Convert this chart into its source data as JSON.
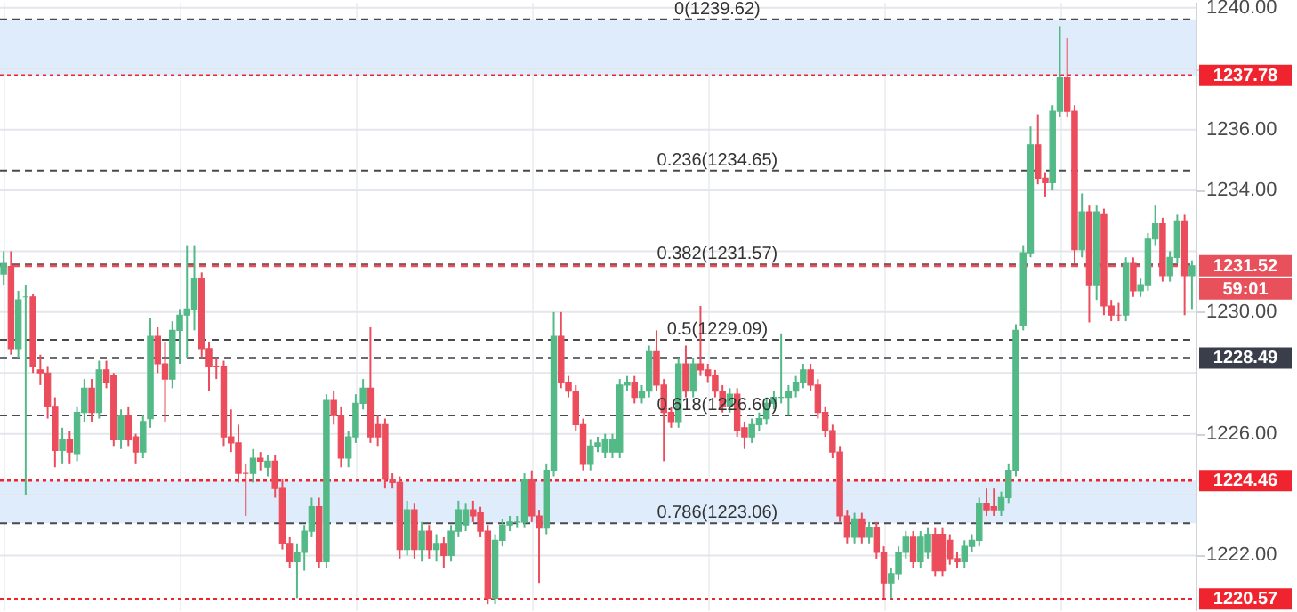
{
  "chart_data": {
    "type": "candlestick",
    "categories": [
      null,
      null,
      null,
      null,
      null,
      null,
      null,
      null,
      null,
      null,
      null,
      null,
      null,
      null,
      null,
      null,
      null,
      null,
      null,
      null,
      null,
      null,
      null,
      null,
      null,
      null,
      null,
      null,
      null,
      null,
      null,
      null,
      null,
      null,
      null,
      null,
      null,
      null,
      null,
      null,
      null,
      null,
      null,
      null,
      null,
      null,
      null,
      null,
      null,
      null,
      null,
      null,
      null,
      null,
      null,
      null,
      null,
      null,
      null,
      null,
      null,
      null,
      null,
      null,
      null,
      null,
      null,
      null,
      null,
      null,
      null,
      null,
      null,
      null,
      null,
      null,
      null,
      null,
      null,
      null,
      null,
      null,
      null,
      null,
      null,
      null,
      null,
      null,
      null,
      null,
      null,
      null,
      null,
      null,
      null,
      null,
      null,
      null,
      null,
      null,
      null,
      null,
      null,
      null,
      null,
      null,
      null,
      null,
      null,
      null,
      null,
      null,
      null,
      null,
      null,
      null,
      null,
      null,
      null,
      null,
      null,
      null,
      null,
      null,
      null,
      null,
      null,
      null,
      null,
      null,
      null,
      null,
      null,
      null,
      null,
      null,
      null,
      null,
      null,
      null,
      null,
      null,
      null,
      null,
      null,
      null,
      null,
      null,
      null,
      null,
      null,
      null,
      null,
      null,
      null,
      null,
      null,
      null,
      null,
      null,
      null,
      null,
      null
    ],
    "ohlc": [
      [
        1231.25,
        1232.0,
        1230.9,
        1231.6
      ],
      [
        1231.5,
        1232.0,
        1228.6,
        1228.8
      ],
      [
        1228.8,
        1230.7,
        1228.5,
        1230.4
      ],
      [
        1230.5,
        1230.9,
        1224.0,
        1230.5
      ],
      [
        1230.5,
        1230.6,
        1228.0,
        1228.2
      ],
      [
        1228.1,
        1228.6,
        1227.6,
        1228.0
      ],
      [
        1228.0,
        1228.2,
        1226.5,
        1226.9
      ],
      [
        1226.9,
        1227.2,
        1224.9,
        1225.45
      ],
      [
        1225.45,
        1226.2,
        1225.0,
        1225.8
      ],
      [
        1225.8,
        1226.1,
        1225.0,
        1225.4
      ],
      [
        1225.35,
        1226.9,
        1225.1,
        1226.7
      ],
      [
        1226.7,
        1227.8,
        1226.4,
        1227.5
      ],
      [
        1227.5,
        1227.8,
        1226.4,
        1226.7
      ],
      [
        1226.7,
        1228.4,
        1226.5,
        1228.1
      ],
      [
        1228.1,
        1228.4,
        1227.5,
        1227.7
      ],
      [
        1227.9,
        1228.0,
        1225.6,
        1225.8
      ],
      [
        1225.8,
        1226.8,
        1225.5,
        1226.6
      ],
      [
        1226.6,
        1226.9,
        1225.6,
        1225.8
      ],
      [
        1225.9,
        1226.0,
        1225.0,
        1225.4
      ],
      [
        1225.4,
        1226.6,
        1225.2,
        1226.4
      ],
      [
        1226.5,
        1229.8,
        1226.2,
        1229.2
      ],
      [
        1229.2,
        1229.5,
        1228.0,
        1228.3
      ],
      [
        1228.3,
        1229.0,
        1226.4,
        1227.8
      ],
      [
        1227.8,
        1229.7,
        1227.5,
        1229.4
      ],
      [
        1229.4,
        1230.1,
        1228.3,
        1229.9
      ],
      [
        1229.9,
        1232.2,
        1228.5,
        1230.1
      ],
      [
        1230.1,
        1232.2,
        1229.4,
        1231.1
      ],
      [
        1231.1,
        1231.3,
        1228.5,
        1228.8
      ],
      [
        1228.8,
        1229.0,
        1227.4,
        1228.2
      ],
      [
        1228.2,
        1228.5,
        1227.8,
        1228.2
      ],
      [
        1228.2,
        1228.4,
        1225.6,
        1225.9
      ],
      [
        1225.9,
        1226.8,
        1225.4,
        1225.7
      ],
      [
        1225.7,
        1226.3,
        1224.4,
        1224.7
      ],
      [
        1224.7,
        1225.0,
        1223.3,
        1224.7
      ],
      [
        1224.7,
        1225.5,
        1224.4,
        1225.2
      ],
      [
        1225.2,
        1225.4,
        1224.8,
        1225.1
      ],
      [
        1224.9,
        1225.3,
        1224.6,
        1225.1
      ],
      [
        1225.1,
        1225.3,
        1223.9,
        1224.2
      ],
      [
        1224.2,
        1224.5,
        1222.2,
        1222.4
      ],
      [
        1222.4,
        1222.6,
        1221.6,
        1221.8
      ],
      [
        1221.8,
        1222.4,
        1220.6,
        1222.1
      ],
      [
        1222.1,
        1223.0,
        1221.5,
        1222.8
      ],
      [
        1222.8,
        1223.9,
        1222.6,
        1223.6
      ],
      [
        1223.6,
        1223.9,
        1221.6,
        1221.8
      ],
      [
        1221.8,
        1227.3,
        1221.6,
        1227.1
      ],
      [
        1227.1,
        1227.4,
        1226.3,
        1226.6
      ],
      [
        1226.6,
        1226.9,
        1224.9,
        1225.2
      ],
      [
        1225.2,
        1226.1,
        1224.9,
        1225.9
      ],
      [
        1225.9,
        1227.3,
        1225.7,
        1227.0
      ],
      [
        1227.0,
        1227.8,
        1226.8,
        1227.5
      ],
      [
        1227.5,
        1229.5,
        1225.7,
        1225.9
      ],
      [
        1226.3,
        1226.6,
        1225.6,
        1225.9
      ],
      [
        1226.3,
        1226.5,
        1224.2,
        1224.5
      ],
      [
        1224.5,
        1224.7,
        1224.2,
        1224.4
      ],
      [
        1224.4,
        1224.6,
        1221.9,
        1222.2
      ],
      [
        1222.2,
        1223.8,
        1222.0,
        1223.5
      ],
      [
        1223.5,
        1223.7,
        1221.9,
        1222.2
      ],
      [
        1222.2,
        1223.1,
        1221.8,
        1222.8
      ],
      [
        1222.8,
        1223.0,
        1221.9,
        1222.2
      ],
      [
        1222.2,
        1222.7,
        1221.8,
        1222.4
      ],
      [
        1222.4,
        1222.6,
        1221.6,
        1222.0
      ],
      [
        1222.0,
        1223.0,
        1221.8,
        1222.8
      ],
      [
        1222.8,
        1223.8,
        1222.6,
        1223.5
      ],
      [
        1223.0,
        1223.7,
        1222.8,
        1223.5
      ],
      [
        1223.5,
        1223.8,
        1223.1,
        1223.3
      ],
      [
        1223.4,
        1223.6,
        1222.6,
        1222.8
      ],
      [
        1222.8,
        1223.0,
        1220.4,
        1220.6
      ],
      [
        1220.6,
        1222.7,
        1220.4,
        1222.5
      ],
      [
        1222.5,
        1223.2,
        1222.3,
        1223.0
      ],
      [
        1223.0,
        1223.3,
        1222.8,
        1223.1
      ],
      [
        1223.1,
        1223.3,
        1222.9,
        1223.1
      ],
      [
        1223.1,
        1224.7,
        1222.9,
        1224.5
      ],
      [
        1224.5,
        1224.8,
        1223.1,
        1223.3
      ],
      [
        1223.3,
        1223.5,
        1221.1,
        1222.9
      ],
      [
        1222.9,
        1225.0,
        1222.7,
        1224.8
      ],
      [
        1224.8,
        1230.0,
        1224.6,
        1229.2
      ],
      [
        1229.2,
        1230.0,
        1227.5,
        1227.7
      ],
      [
        1227.7,
        1227.9,
        1227.2,
        1227.4
      ],
      [
        1227.4,
        1227.6,
        1226.1,
        1226.3
      ],
      [
        1226.3,
        1226.5,
        1224.8,
        1225.0
      ],
      [
        1225.0,
        1225.8,
        1224.8,
        1225.6
      ],
      [
        1225.6,
        1225.9,
        1225.4,
        1225.7
      ],
      [
        1225.4,
        1226.0,
        1225.2,
        1225.8
      ],
      [
        1225.4,
        1226.0,
        1225.2,
        1225.8
      ],
      [
        1225.4,
        1227.8,
        1225.2,
        1227.6
      ],
      [
        1227.6,
        1227.9,
        1227.4,
        1227.7
      ],
      [
        1227.7,
        1227.9,
        1227.0,
        1227.2
      ],
      [
        1227.2,
        1227.6,
        1227.0,
        1227.4
      ],
      [
        1227.4,
        1228.9,
        1227.2,
        1228.7
      ],
      [
        1228.7,
        1229.4,
        1227.4,
        1227.6
      ],
      [
        1227.6,
        1227.8,
        1225.1,
        1226.7
      ],
      [
        1226.7,
        1226.9,
        1226.2,
        1226.4
      ],
      [
        1226.4,
        1228.5,
        1226.2,
        1228.3
      ],
      [
        1228.3,
        1228.9,
        1227.2,
        1227.4
      ],
      [
        1227.4,
        1228.5,
        1227.2,
        1228.3
      ],
      [
        1228.3,
        1230.2,
        1227.9,
        1228.1
      ],
      [
        1228.1,
        1228.3,
        1227.7,
        1227.9
      ],
      [
        1227.9,
        1228.1,
        1227.2,
        1227.4
      ],
      [
        1227.4,
        1227.6,
        1226.7,
        1226.9
      ],
      [
        1226.9,
        1227.5,
        1226.7,
        1227.3
      ],
      [
        1227.3,
        1227.5,
        1225.9,
        1226.1
      ],
      [
        1226.2,
        1226.4,
        1225.5,
        1225.9
      ],
      [
        1225.9,
        1226.5,
        1225.7,
        1226.3
      ],
      [
        1226.3,
        1226.7,
        1226.1,
        1226.5
      ],
      [
        1226.5,
        1227.2,
        1226.3,
        1227.0
      ],
      [
        1227.0,
        1227.4,
        1226.8,
        1227.2
      ],
      [
        1227.2,
        1229.3,
        1227.0,
        1227.2
      ],
      [
        1227.2,
        1227.6,
        1226.6,
        1227.4
      ],
      [
        1227.4,
        1227.9,
        1227.2,
        1227.7
      ],
      [
        1227.7,
        1228.3,
        1227.5,
        1228.1
      ],
      [
        1228.1,
        1228.3,
        1227.4,
        1227.6
      ],
      [
        1227.6,
        1227.8,
        1226.5,
        1226.7
      ],
      [
        1226.7,
        1226.9,
        1225.9,
        1226.1
      ],
      [
        1226.1,
        1226.3,
        1225.2,
        1225.4
      ],
      [
        1225.4,
        1225.6,
        1223.1,
        1223.3
      ],
      [
        1223.3,
        1223.5,
        1222.4,
        1222.6
      ],
      [
        1222.6,
        1223.4,
        1222.4,
        1223.2
      ],
      [
        1223.2,
        1223.4,
        1222.4,
        1222.6
      ],
      [
        1222.6,
        1223.1,
        1222.4,
        1222.9
      ],
      [
        1222.9,
        1223.1,
        1221.9,
        1222.1
      ],
      [
        1222.1,
        1222.3,
        1220.6,
        1221.1
      ],
      [
        1221.1,
        1221.6,
        1220.6,
        1221.4
      ],
      [
        1221.4,
        1222.3,
        1221.2,
        1222.1
      ],
      [
        1222.1,
        1222.8,
        1221.9,
        1222.6
      ],
      [
        1222.6,
        1222.8,
        1221.6,
        1221.8
      ],
      [
        1221.8,
        1222.8,
        1221.6,
        1222.6
      ],
      [
        1222.1,
        1222.9,
        1221.9,
        1222.7
      ],
      [
        1222.7,
        1222.9,
        1221.3,
        1221.5
      ],
      [
        1222.7,
        1222.9,
        1221.3,
        1221.5
      ],
      [
        1222.5,
        1222.7,
        1221.7,
        1221.9
      ],
      [
        1221.9,
        1222.1,
        1221.6,
        1221.8
      ],
      [
        1221.8,
        1222.5,
        1221.6,
        1222.3
      ],
      [
        1222.3,
        1222.7,
        1222.1,
        1222.5
      ],
      [
        1222.5,
        1223.9,
        1222.3,
        1223.7
      ],
      [
        1223.7,
        1224.2,
        1223.3,
        1223.5
      ],
      [
        1223.6,
        1224.2,
        1223.3,
        1223.5
      ],
      [
        1223.5,
        1224.1,
        1223.3,
        1223.9
      ],
      [
        1223.9,
        1225.0,
        1223.7,
        1224.8
      ],
      [
        1224.8,
        1229.6,
        1224.6,
        1229.4
      ],
      [
        1229.56,
        1232.2,
        1229.4,
        1231.95
      ],
      [
        1231.95,
        1236.1,
        1231.8,
        1235.5
      ],
      [
        1235.5,
        1236.5,
        1234.2,
        1234.4
      ],
      [
        1234.4,
        1234.6,
        1233.8,
        1234.25
      ],
      [
        1234.25,
        1236.8,
        1234.0,
        1236.6
      ],
      [
        1236.6,
        1239.4,
        1236.4,
        1237.7
      ],
      [
        1237.7,
        1239.0,
        1236.4,
        1236.6
      ],
      [
        1236.6,
        1236.8,
        1231.6,
        1232.05
      ],
      [
        1232.05,
        1233.9,
        1231.8,
        1233.3
      ],
      [
        1233.3,
        1233.5,
        1229.66,
        1230.9
      ],
      [
        1230.9,
        1233.5,
        1230.4,
        1233.3
      ],
      [
        1233.2,
        1233.4,
        1229.9,
        1230.2
      ],
      [
        1230.2,
        1230.4,
        1229.7,
        1229.9
      ],
      [
        1229.9,
        1230.3,
        1229.7,
        1229.9
      ],
      [
        1229.9,
        1231.8,
        1229.7,
        1231.6
      ],
      [
        1231.6,
        1231.8,
        1230.5,
        1230.7
      ],
      [
        1230.7,
        1231.1,
        1230.5,
        1230.9
      ],
      [
        1230.9,
        1232.6,
        1230.7,
        1232.4
      ],
      [
        1232.4,
        1233.5,
        1232.2,
        1232.9
      ],
      [
        1232.9,
        1233.1,
        1231.0,
        1231.2
      ],
      [
        1231.2,
        1232.0,
        1231.0,
        1231.8
      ],
      [
        1231.8,
        1233.2,
        1231.6,
        1233.0
      ],
      [
        1233.0,
        1233.2,
        1229.9,
        1231.2
      ],
      [
        1231.2,
        1231.7,
        1230.1,
        1231.52
      ]
    ],
    "colors": [
      "#53b987",
      "#eb4d5c",
      "#53b987",
      "#53b987",
      "#eb4d5c",
      "#eb4d5c",
      "#eb4d5c",
      "#eb4d5c",
      "#53b987",
      "#eb4d5c",
      "#53b987",
      "#53b987",
      "#eb4d5c",
      "#53b987",
      "#eb4d5c",
      "#eb4d5c",
      "#53b987",
      "#eb4d5c",
      "#eb4d5c",
      "#53b987",
      "#53b987",
      "#eb4d5c",
      "#eb4d5c",
      "#53b987",
      "#53b987",
      "#53b987",
      "#53b987",
      "#eb4d5c",
      "#eb4d5c",
      "#eb4d5c",
      "#eb4d5c",
      "#eb4d5c",
      "#eb4d5c",
      "#eb4d5c",
      "#53b987",
      "#eb4d5c",
      "#53b987",
      "#eb4d5c",
      "#eb4d5c",
      "#eb4d5c",
      "#53b987",
      "#53b987",
      "#53b987",
      "#eb4d5c",
      "#53b987",
      "#eb4d5c",
      "#eb4d5c",
      "#53b987",
      "#53b987",
      "#53b987",
      "#eb4d5c",
      "#eb4d5c",
      "#eb4d5c",
      "#eb4d5c",
      "#eb4d5c",
      "#53b987",
      "#eb4d5c",
      "#53b987",
      "#eb4d5c",
      "#53b987",
      "#eb4d5c",
      "#53b987",
      "#53b987",
      "#53b987",
      "#eb4d5c",
      "#eb4d5c",
      "#eb4d5c",
      "#53b987",
      "#53b987",
      "#53b987",
      "#53b987",
      "#53b987",
      "#eb4d5c",
      "#eb4d5c",
      "#53b987",
      "#53b987",
      "#eb4d5c",
      "#eb4d5c",
      "#eb4d5c",
      "#eb4d5c",
      "#53b987",
      "#53b987",
      "#53b987",
      "#53b987",
      "#53b987",
      "#53b987",
      "#eb4d5c",
      "#53b987",
      "#53b987",
      "#eb4d5c",
      "#eb4d5c",
      "#eb4d5c",
      "#53b987",
      "#eb4d5c",
      "#53b987",
      "#eb4d5c",
      "#eb4d5c",
      "#eb4d5c",
      "#eb4d5c",
      "#53b987",
      "#eb4d5c",
      "#eb4d5c",
      "#53b987",
      "#53b987",
      "#53b987",
      "#53b987",
      "#53b987",
      "#53b987",
      "#53b987",
      "#53b987",
      "#eb4d5c",
      "#eb4d5c",
      "#eb4d5c",
      "#eb4d5c",
      "#eb4d5c",
      "#eb4d5c",
      "#53b987",
      "#eb4d5c",
      "#53b987",
      "#eb4d5c",
      "#eb4d5c",
      "#53b987",
      "#53b987",
      "#53b987",
      "#eb4d5c",
      "#53b987",
      "#53b987",
      "#eb4d5c",
      "#eb4d5c",
      "#eb4d5c",
      "#eb4d5c",
      "#53b987",
      "#53b987",
      "#53b987",
      "#eb4d5c",
      "#eb4d5c",
      "#53b987",
      "#53b987",
      "#53b987",
      "#53b987",
      "#53b987",
      "#eb4d5c",
      "#eb4d5c",
      "#53b987",
      "#53b987",
      "#eb4d5c",
      "#eb4d5c",
      "#53b987",
      "#eb4d5c",
      "#53b987",
      "#eb4d5c",
      "#eb4d5c",
      "#eb4d5c",
      "#53b987",
      "#eb4d5c",
      "#53b987",
      "#53b987",
      "#53b987",
      "#eb4d5c",
      "#53b987",
      "#53b987",
      "#eb4d5c",
      "#53b987"
    ],
    "ylim": [
      1220.2,
      1240.2
    ],
    "yticks": [
      {
        "value": 1222,
        "label": "1222.00"
      },
      {
        "value": 1224,
        "label": null
      },
      {
        "value": 1226,
        "label": "1226.00"
      },
      {
        "value": 1228,
        "label": null
      },
      {
        "value": 1230,
        "label": "1230.00"
      },
      {
        "value": 1232,
        "label": null
      },
      {
        "value": 1234,
        "label": "1234.00"
      },
      {
        "value": 1236,
        "label": "1236.00"
      },
      {
        "value": 1238,
        "label": null
      },
      {
        "value": 1240,
        "label": "1240.00"
      }
    ],
    "grid": true,
    "tick_labels": "y",
    "bands": [
      {
        "axis": "y",
        "from": 1237.78,
        "to": 1239.62,
        "color": "#dbeafb"
      },
      {
        "axis": "y",
        "from": 1223.06,
        "to": 1224.46,
        "color": "#dbeafb"
      }
    ],
    "ref_lines": [
      {
        "axis": "y",
        "value": 1239.62,
        "label": "0(1239.62)",
        "line_style": "dashed"
      },
      {
        "axis": "y",
        "value": 1234.65,
        "label": "0.236(1234.65)",
        "line_style": "dashed"
      },
      {
        "axis": "y",
        "value": 1231.57,
        "label": "0.382(1231.57)",
        "line_style": "dashed"
      },
      {
        "axis": "y",
        "value": 1229.09,
        "label": "0.5(1229.09)",
        "line_style": "dashed"
      },
      {
        "axis": "y",
        "value": 1226.6,
        "label": "0.618(1226.60)",
        "line_style": "dashed"
      },
      {
        "axis": "y",
        "value": 1223.06,
        "label": "0.786(1223.06)",
        "line_style": "dashed"
      },
      {
        "axis": "y",
        "value": 1237.78,
        "label": "1237.78",
        "color": "#f0242f",
        "line_style": "dotted"
      },
      {
        "axis": "y",
        "value": 1224.46,
        "label": "1224.46",
        "color": "#f0242f",
        "line_style": "dotted"
      },
      {
        "axis": "y",
        "value": 1220.57,
        "label": "1220.57",
        "color": "#f0242f",
        "line_style": "dotted"
      },
      {
        "axis": "y",
        "value": 1231.52,
        "label": "1231.52",
        "color": "#e8515c",
        "line_style": "dashed"
      },
      {
        "axis": "y",
        "value": 1228.49,
        "label": "1228.49",
        "color": "#3a3e4a",
        "line_style": "dashed"
      }
    ],
    "annotations": [
      "59:01"
    ]
  }
}
